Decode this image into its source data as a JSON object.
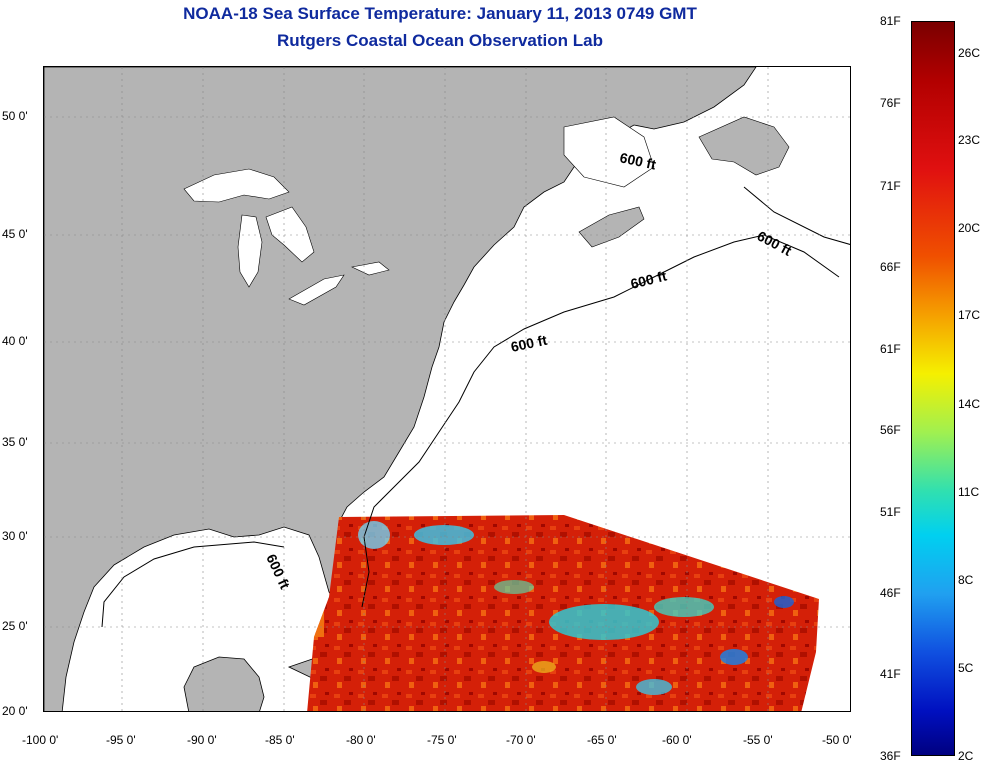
{
  "title": {
    "line1": "NOAA-18 Sea Surface Temperature:  January 11, 2013 0749 GMT",
    "line2": "Rutgers Coastal Ocean Observation Lab"
  },
  "map": {
    "lat_ticks": [
      "50 0'",
      "45 0'",
      "40 0'",
      "35 0'",
      "30 0'",
      "25 0'",
      "20 0'"
    ],
    "lon_ticks": [
      "-100 0'",
      "-95 0'",
      "-90 0'",
      "-85 0'",
      "-80 0'",
      "-75 0'",
      "-70 0'",
      "-65 0'",
      "-60 0'",
      "-55 0'",
      "-50 0'"
    ],
    "contour_labels": [
      "600 ft",
      "600 ft",
      "600 ft",
      "600 ft",
      "600 ft"
    ],
    "land_color": "#b4b4b4",
    "grid": true
  },
  "colorbar": {
    "fahrenheit": [
      "81F",
      "76F",
      "71F",
      "66F",
      "61F",
      "56F",
      "51F",
      "46F",
      "41F",
      "36F"
    ],
    "celsius": [
      "26C",
      "23C",
      "20C",
      "17C",
      "14C",
      "11C",
      "8C",
      "5C",
      "2C"
    ]
  }
}
